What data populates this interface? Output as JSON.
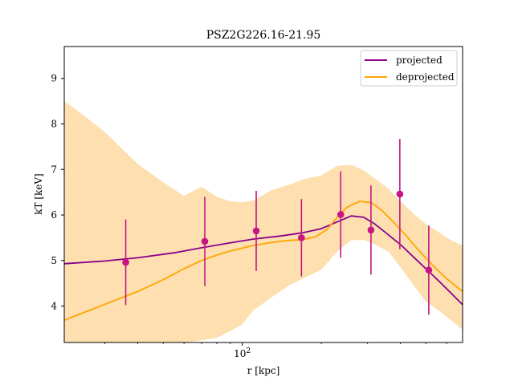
{
  "chart_data": {
    "type": "line",
    "title": "PSZ2G226.16-21.95",
    "xlabel": "r [kpc]",
    "ylabel": "kT [keV]",
    "xscale": "log",
    "xlim": [
      21,
      690
    ],
    "ylim": [
      3.2,
      9.7
    ],
    "x_ticks": [
      {
        "value": 100,
        "label": "10^2"
      }
    ],
    "y_ticks": [
      4,
      5,
      6,
      7,
      8,
      9
    ],
    "legend": {
      "position": "upper-right",
      "entries": [
        "projected",
        "deprojected"
      ]
    },
    "colors": {
      "projected": "#8b008b",
      "deprojected": "#ffa500",
      "band": "#fddfb0",
      "points": "#c71585"
    },
    "series": [
      {
        "name": "projected",
        "x": [
          21,
          30,
          40,
          55,
          70,
          90,
          110,
          140,
          170,
          200,
          230,
          260,
          290,
          320,
          350,
          400,
          450,
          500,
          560,
          620,
          690
        ],
        "y": [
          4.93,
          4.99,
          5.06,
          5.17,
          5.28,
          5.39,
          5.47,
          5.54,
          5.61,
          5.7,
          5.85,
          5.98,
          5.95,
          5.8,
          5.62,
          5.35,
          5.07,
          4.82,
          4.55,
          4.3,
          4.03
        ]
      },
      {
        "name": "deprojected",
        "x": [
          21,
          25,
          30,
          40,
          50,
          60,
          70,
          80,
          90,
          110,
          130,
          150,
          170,
          190,
          210,
          230,
          250,
          280,
          310,
          340,
          380,
          420,
          470,
          530,
          600,
          690
        ],
        "y": [
          3.69,
          3.86,
          4.04,
          4.32,
          4.58,
          4.82,
          5.0,
          5.12,
          5.21,
          5.33,
          5.4,
          5.44,
          5.46,
          5.52,
          5.68,
          5.95,
          6.17,
          6.3,
          6.27,
          6.1,
          5.82,
          5.55,
          5.22,
          4.9,
          4.6,
          4.32
        ]
      }
    ],
    "band": {
      "x": [
        21,
        25,
        30,
        40,
        50,
        60,
        70,
        80,
        90,
        100,
        110,
        130,
        150,
        170,
        200,
        230,
        260,
        290,
        320,
        360,
        400,
        450,
        500,
        560,
        620,
        690
      ],
      "upper": [
        8.5,
        8.18,
        7.82,
        7.12,
        6.72,
        6.42,
        6.62,
        6.4,
        6.3,
        6.28,
        6.32,
        6.55,
        6.66,
        6.78,
        6.87,
        7.08,
        7.1,
        6.98,
        6.8,
        6.58,
        6.3,
        6.02,
        5.8,
        5.62,
        5.45,
        5.33
      ],
      "lower": [
        2.0,
        2.0,
        2.1,
        2.5,
        3.0,
        3.2,
        3.25,
        3.3,
        3.45,
        3.6,
        3.9,
        4.2,
        4.45,
        4.6,
        4.8,
        5.2,
        5.45,
        5.45,
        5.35,
        5.2,
        4.85,
        4.45,
        4.1,
        3.9,
        3.7,
        3.48
      ]
    },
    "points": [
      {
        "x": 36,
        "y": 4.96,
        "yerr_low": 0.94,
        "yerr_high": 0.94
      },
      {
        "x": 72,
        "y": 5.42,
        "yerr_low": 0.98,
        "yerr_high": 0.98
      },
      {
        "x": 113,
        "y": 5.65,
        "yerr_low": 0.88,
        "yerr_high": 0.88
      },
      {
        "x": 168,
        "y": 5.5,
        "yerr_low": 0.85,
        "yerr_high": 0.85
      },
      {
        "x": 237,
        "y": 6.01,
        "yerr_low": 0.95,
        "yerr_high": 0.95
      },
      {
        "x": 309,
        "y": 5.67,
        "yerr_low": 0.98,
        "yerr_high": 0.98
      },
      {
        "x": 398,
        "y": 6.46,
        "yerr_low": 1.21,
        "yerr_high": 1.21
      },
      {
        "x": 513,
        "y": 4.79,
        "yerr_low": 0.98,
        "yerr_high": 0.98
      }
    ]
  }
}
